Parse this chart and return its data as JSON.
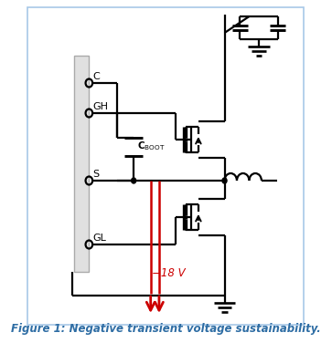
{
  "title": "Figure 1: Negative transient voltage sustainability.",
  "title_color": "#2e6da4",
  "title_fontsize": 8.5,
  "bg_color": "#ffffff",
  "border_color": "#a8c8e8",
  "circuit_color": "#000000",
  "red_color": "#cc0000",
  "label_C": "C",
  "label_GH": "GH",
  "label_S": "S",
  "label_GL": "GL",
  "label_voltage": "−18 V",
  "figsize": [
    3.63,
    3.76
  ],
  "dpi": 100
}
